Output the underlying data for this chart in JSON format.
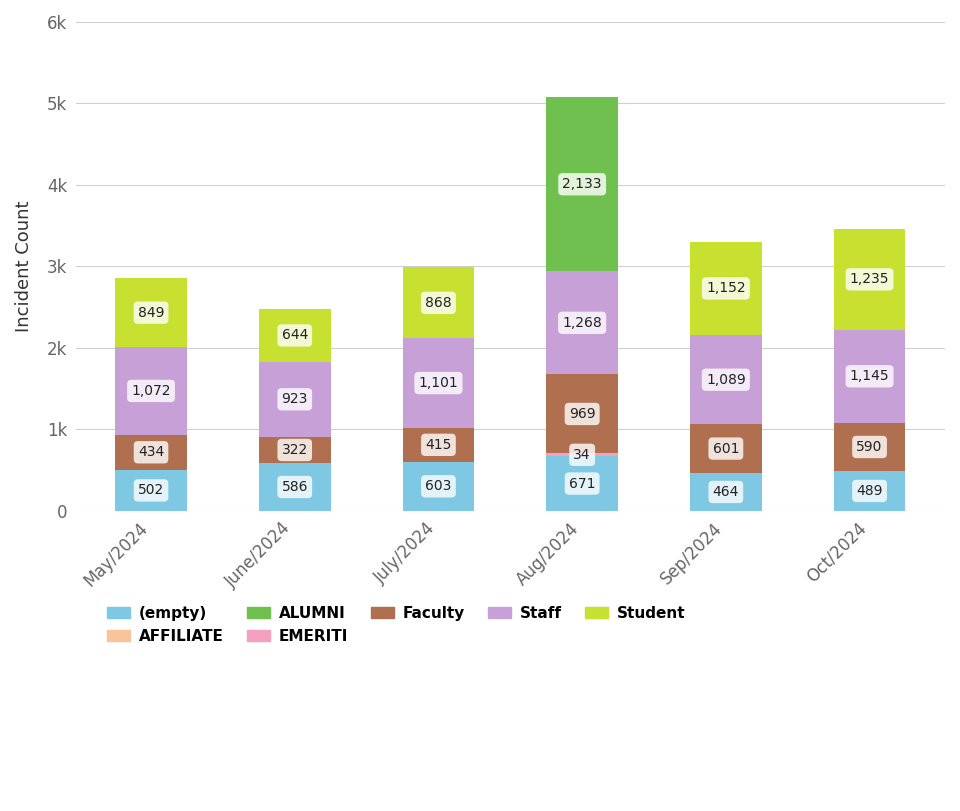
{
  "months": [
    "May/2024",
    "June/2024",
    "July/2024",
    "Aug/2024",
    "Sep/2024",
    "Oct/2024"
  ],
  "categories": [
    "(empty)",
    "AFFILIATE",
    "EMERITI",
    "Faculty",
    "Staff",
    "Student",
    "ALUMNI"
  ],
  "colors": {
    "(empty)": "#7ec8e3",
    "AFFILIATE": "#f9c49a",
    "EMERITI": "#f5a0c0",
    "Faculty": "#b07050",
    "Staff": "#c8a0d8",
    "Student": "#c8e030",
    "ALUMNI": "#70c050"
  },
  "data": {
    "(empty)": [
      502,
      586,
      603,
      671,
      464,
      489
    ],
    "AFFILIATE": [
      0,
      0,
      0,
      0,
      0,
      0
    ],
    "EMERITI": [
      0,
      0,
      0,
      34,
      0,
      0
    ],
    "Faculty": [
      434,
      322,
      415,
      969,
      601,
      590
    ],
    "Staff": [
      1072,
      923,
      1101,
      1268,
      1089,
      1145
    ],
    "Student": [
      849,
      644,
      868,
      0,
      1152,
      1235
    ],
    "ALUMNI": [
      0,
      0,
      0,
      2133,
      0,
      0
    ]
  },
  "labels": {
    "(empty)": [
      "502",
      "586",
      "603",
      "671",
      "464",
      "489"
    ],
    "AFFILIATE": [
      "",
      "",
      "",
      "",
      "",
      ""
    ],
    "EMERITI": [
      "",
      "",
      "",
      "34",
      "",
      ""
    ],
    "Faculty": [
      "434",
      "322",
      "415",
      "969",
      "601",
      "590"
    ],
    "Staff": [
      "1,072",
      "923",
      "1,101",
      "1,268",
      "1,089",
      "1,145"
    ],
    "Student": [
      "849",
      "644",
      "868",
      "",
      "1,152",
      "1,235"
    ],
    "ALUMNI": [
      "",
      "",
      "",
      "2,133",
      "",
      ""
    ]
  },
  "ylabel": "Incident Count",
  "ylim": [
    0,
    6000
  ],
  "yticks": [
    0,
    1000,
    2000,
    3000,
    4000,
    5000,
    6000
  ],
  "ytick_labels": [
    "0",
    "1k",
    "2k",
    "3k",
    "4k",
    "5k",
    "6k"
  ],
  "background_color": "#ffffff",
  "grid_color": "#d0d0d0",
  "bar_width": 0.5,
  "legend_order": [
    "(empty)",
    "AFFILIATE",
    "ALUMNI",
    "EMERITI",
    "Faculty",
    "Staff",
    "Student"
  ]
}
